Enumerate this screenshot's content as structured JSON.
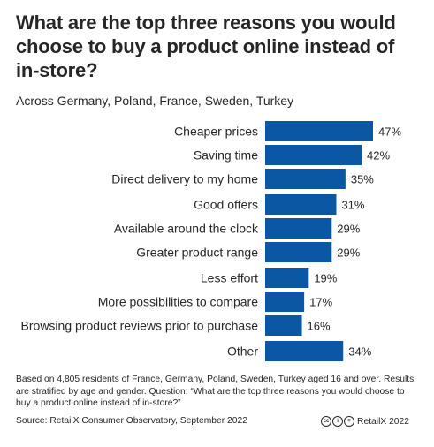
{
  "title": "What are the top three reasons you would choose to buy a product online instead of in-store?",
  "subtitle": "Across Germany, Poland, France, Sweden, Turkey",
  "footnote": "Based on 4,805 residents of France, Germany, Poland, Sweden, Turkey aged 16 and over. Results are stratified by age and gender. Question: “What are the top three reasons you would choose to buy a product online instead of in-store?”",
  "source": "Source: RetailX Consumer Observatory, September 2022",
  "credit": "RetailX 2022",
  "colors": {
    "bar": "#0b57a4",
    "text": "#262626"
  },
  "icons": [
    "cc-icon",
    "by-icon",
    "nd-icon"
  ],
  "chart_data": {
    "type": "bar",
    "orientation": "horizontal",
    "title": "What are the top three reasons you would choose to buy a product online instead of in-store?",
    "subtitle": "Across Germany, Poland, France, Sweden, Turkey",
    "categories": [
      "Cheaper prices",
      "Saving time",
      "Direct delivery to my home",
      "Good offers",
      "Available around the clock",
      "Greater product range",
      "Less effort",
      "More possibilities to compare",
      "Browsing product reviews prior to purchase",
      "Other"
    ],
    "values": [
      47,
      42,
      35,
      31,
      29,
      29,
      19,
      17,
      16,
      34
    ],
    "labels": [
      "47%",
      "42%",
      "35%",
      "31%",
      "29%",
      "29%",
      "19%",
      "17%",
      "16%",
      "34%"
    ],
    "unit": "%",
    "xlim": [
      0,
      47
    ],
    "grid": false,
    "legend": "none"
  }
}
